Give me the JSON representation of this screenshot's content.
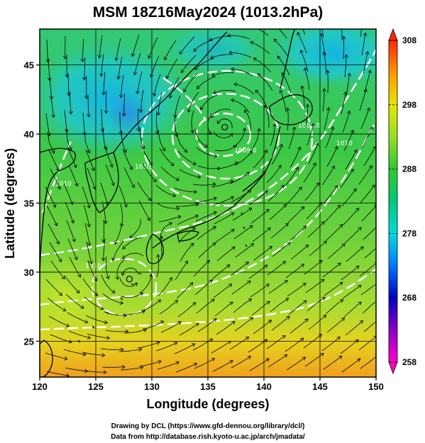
{
  "title": "MSM 18Z16May2024 (1013.2hPa)",
  "credits": [
    "Drawing by DCL (https://www.gfd-dennou.org/library/dcl/)",
    "Data from http://database.rish.kyoto-u.ac.jp/arch/jmadata/"
  ],
  "map": {
    "xlabel": "Longitude (degrees)",
    "ylabel": "Latitude  (degrees)",
    "lon_range": [
      120,
      150
    ],
    "lat_range": [
      22.4,
      47.6
    ],
    "lon_ticks": [
      120,
      125,
      130,
      135,
      140,
      145,
      150
    ],
    "lat_ticks": [
      25,
      30,
      35,
      40,
      45
    ],
    "lon_tick_labels": [
      "120",
      "125",
      "130",
      "135",
      "140",
      "145",
      "150"
    ],
    "lat_tick_labels": [
      "25",
      "30",
      "35",
      "40",
      "45"
    ],
    "grid": true,
    "fill_colors": {
      "cool": "#1ec8e6",
      "mid": "#28c846",
      "warm": "#b4e628",
      "hot": "#f0a020",
      "contour": "#ffffff",
      "streamline": "#000000"
    },
    "cyclones": [
      {
        "lon": 136.5,
        "lat": 40.5
      },
      {
        "lon": 128.0,
        "lat": 29.5
      }
    ],
    "contour_labels": [
      "1010",
      "1010",
      "1004.0",
      "1009.0",
      "1010",
      "1010"
    ]
  },
  "colorbar": {
    "min": 258,
    "max": 308,
    "tick_values": [
      258,
      268,
      278,
      288,
      298,
      308
    ],
    "tick_labels": [
      "258",
      "268",
      "278",
      "288",
      "298",
      "308"
    ],
    "stops": [
      {
        "value": 258,
        "color": "#ff00c8"
      },
      {
        "value": 263,
        "color": "#8c00c8"
      },
      {
        "value": 268,
        "color": "#0000c8"
      },
      {
        "value": 273,
        "color": "#0078ff"
      },
      {
        "value": 278,
        "color": "#00dcdc"
      },
      {
        "value": 283,
        "color": "#00c878"
      },
      {
        "value": 288,
        "color": "#32c832"
      },
      {
        "value": 293,
        "color": "#96dc28"
      },
      {
        "value": 298,
        "color": "#e6e600"
      },
      {
        "value": 303,
        "color": "#ff9600"
      },
      {
        "value": 308,
        "color": "#ff2800"
      }
    ]
  }
}
